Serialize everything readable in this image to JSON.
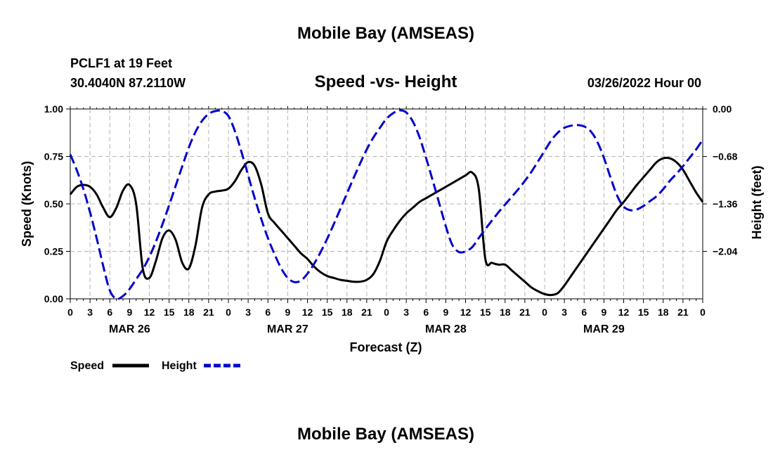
{
  "page": {
    "top_title": "Mobile Bay (AMSEAS)",
    "bottom_title": "Mobile Bay (AMSEAS)"
  },
  "chart_data": {
    "type": "line",
    "title": "Speed -vs- Height",
    "station_line": "PCLF1 at 19 Feet",
    "coords_line": "30.4040N  87.2110W",
    "date_line": "03/26/2022 Hour 00",
    "xlabel": "Forecast (Z)",
    "ylabel": "Speed (Knots)",
    "y2label": "Height (feet)",
    "x_range_hours": [
      0,
      96
    ],
    "x_tick_step_hours": 3,
    "x_tick_labels": [
      "0",
      "3",
      "6",
      "9",
      "12",
      "15",
      "18",
      "21",
      "0",
      "3",
      "6",
      "9",
      "12",
      "15",
      "18",
      "21",
      "0",
      "3",
      "6",
      "9",
      "12",
      "15",
      "18",
      "21",
      "0",
      "3",
      "6",
      "9",
      "12",
      "15",
      "18",
      "21",
      "0"
    ],
    "day_labels": [
      {
        "label": "MAR 26",
        "hour": 9
      },
      {
        "label": "MAR 27",
        "hour": 33
      },
      {
        "label": "MAR 28",
        "hour": 57
      },
      {
        "label": "MAR 29",
        "hour": 81
      }
    ],
    "ylim": [
      0,
      1.0
    ],
    "y_ticks": [
      0,
      0.25,
      0.5,
      0.75,
      1.0
    ],
    "y_tick_labels": [
      "0.00",
      "0.25",
      "0.50",
      "0.75",
      "1.00"
    ],
    "y2lim": [
      -2.72,
      0
    ],
    "y2_ticks": [
      -2.04,
      -1.36,
      -0.68,
      0.0
    ],
    "y2_tick_labels": [
      "−2.04",
      "−1.36",
      "−0.68",
      "0.00"
    ],
    "grid": true,
    "legend": [
      {
        "name": "Speed",
        "color": "#000000",
        "style": "solid"
      },
      {
        "name": "Height",
        "color": "#0000cc",
        "style": "dashed"
      }
    ],
    "series": [
      {
        "name": "Speed",
        "axis": "left",
        "color": "#000000",
        "x": [
          0,
          1,
          2,
          3,
          4,
          5,
          6,
          7,
          8,
          9,
          10,
          11,
          12,
          13,
          14,
          15,
          16,
          17,
          18,
          19,
          20,
          21,
          22,
          23,
          24,
          25,
          26,
          27,
          28,
          29,
          30,
          31,
          32,
          33,
          34,
          35,
          36,
          37,
          38,
          39,
          40,
          41,
          42,
          43,
          44,
          45,
          46,
          47,
          48,
          49,
          50,
          51,
          52,
          53,
          54,
          55,
          56,
          57,
          58,
          59,
          60,
          61,
          62,
          63,
          64,
          65,
          66,
          67,
          68,
          69,
          70,
          71,
          72,
          73,
          74,
          75,
          76,
          77,
          78,
          79,
          80,
          81,
          82,
          83,
          84,
          85,
          86,
          87,
          88,
          89,
          90,
          91,
          92,
          93,
          94,
          95,
          96
        ],
        "values": [
          0.55,
          0.59,
          0.6,
          0.59,
          0.55,
          0.48,
          0.43,
          0.48,
          0.57,
          0.6,
          0.5,
          0.16,
          0.11,
          0.2,
          0.32,
          0.36,
          0.31,
          0.19,
          0.16,
          0.28,
          0.48,
          0.55,
          0.565,
          0.57,
          0.58,
          0.62,
          0.68,
          0.72,
          0.7,
          0.6,
          0.45,
          0.4,
          0.36,
          0.32,
          0.28,
          0.24,
          0.21,
          0.17,
          0.14,
          0.12,
          0.11,
          0.1,
          0.095,
          0.09,
          0.09,
          0.1,
          0.13,
          0.2,
          0.3,
          0.36,
          0.41,
          0.45,
          0.48,
          0.51,
          0.53,
          0.55,
          0.57,
          0.59,
          0.61,
          0.63,
          0.65,
          0.665,
          0.58,
          0.21,
          0.19,
          0.18,
          0.18,
          0.15,
          0.12,
          0.09,
          0.06,
          0.04,
          0.025,
          0.02,
          0.03,
          0.07,
          0.12,
          0.17,
          0.22,
          0.27,
          0.32,
          0.37,
          0.42,
          0.47,
          0.51,
          0.555,
          0.6,
          0.64,
          0.68,
          0.72,
          0.74,
          0.74,
          0.72,
          0.68,
          0.62,
          0.56,
          0.51
        ]
      },
      {
        "name": "Height",
        "axis": "right",
        "color": "#0000cc",
        "x": [
          0,
          1,
          2,
          3,
          4,
          5,
          6,
          7,
          8,
          9,
          10,
          11,
          12,
          13,
          14,
          15,
          16,
          17,
          18,
          19,
          20,
          21,
          22,
          23,
          24,
          25,
          26,
          27,
          28,
          29,
          30,
          31,
          32,
          33,
          34,
          35,
          36,
          37,
          38,
          39,
          40,
          41,
          42,
          43,
          44,
          45,
          46,
          47,
          48,
          49,
          50,
          51,
          52,
          53,
          54,
          55,
          56,
          57,
          58,
          59,
          60,
          61,
          62,
          63,
          64,
          65,
          66,
          67,
          68,
          69,
          70,
          71,
          72,
          73,
          74,
          75,
          76,
          77,
          78,
          79,
          80,
          81,
          82,
          83,
          84,
          85,
          86,
          87,
          88,
          89,
          90,
          91,
          92,
          93,
          94,
          95,
          96
        ],
        "values": [
          -0.65,
          -0.88,
          -1.15,
          -1.48,
          -1.85,
          -2.25,
          -2.6,
          -2.72,
          -2.68,
          -2.58,
          -2.44,
          -2.3,
          -2.12,
          -1.9,
          -1.65,
          -1.38,
          -1.1,
          -0.82,
          -0.55,
          -0.33,
          -0.17,
          -0.07,
          -0.03,
          -0.03,
          -0.1,
          -0.32,
          -0.62,
          -0.95,
          -1.28,
          -1.58,
          -1.85,
          -2.08,
          -2.28,
          -2.42,
          -2.48,
          -2.46,
          -2.36,
          -2.22,
          -2.05,
          -1.86,
          -1.65,
          -1.43,
          -1.21,
          -0.99,
          -0.78,
          -0.58,
          -0.41,
          -0.27,
          -0.14,
          -0.06,
          -0.02,
          -0.05,
          -0.18,
          -0.4,
          -0.7,
          -1.02,
          -1.35,
          -1.68,
          -1.95,
          -2.05,
          -2.04,
          -1.98,
          -1.85,
          -1.72,
          -1.6,
          -1.48,
          -1.37,
          -1.26,
          -1.15,
          -1.03,
          -0.9,
          -0.75,
          -0.6,
          -0.45,
          -0.34,
          -0.27,
          -0.24,
          -0.23,
          -0.25,
          -0.32,
          -0.47,
          -0.7,
          -0.98,
          -1.24,
          -1.4,
          -1.45,
          -1.44,
          -1.39,
          -1.32,
          -1.25,
          -1.15,
          -1.03,
          -0.93,
          -0.82,
          -0.7,
          -0.58,
          -0.44
        ]
      }
    ]
  }
}
